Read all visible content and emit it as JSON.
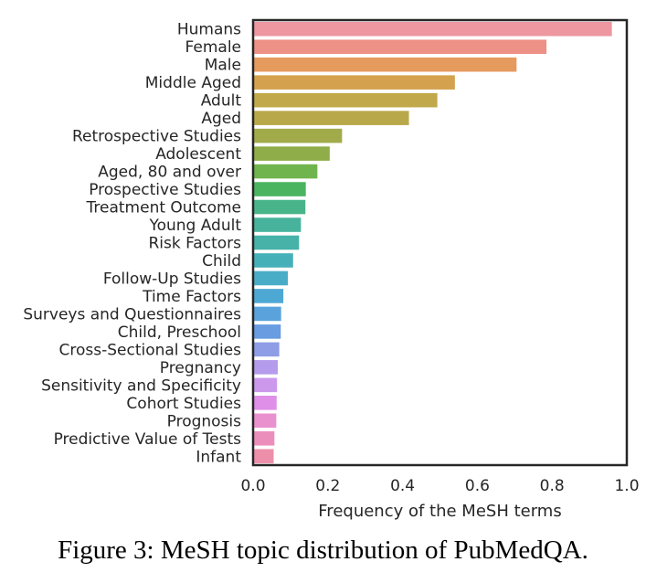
{
  "chart_data": {
    "type": "bar",
    "orientation": "horizontal",
    "categories": [
      "Humans",
      "Female",
      "Male",
      "Middle Aged",
      "Adult",
      "Aged",
      "Retrospective Studies",
      "Adolescent",
      "Aged, 80 and over",
      "Prospective Studies",
      "Treatment Outcome",
      "Young Adult",
      "Risk Factors",
      "Child",
      "Follow-Up Studies",
      "Time Factors",
      "Surveys and Questionnaires",
      "Child, Preschool",
      "Cross-Sectional Studies",
      "Pregnancy",
      "Sensitivity and Specificity",
      "Cohort Studies",
      "Prognosis",
      "Predictive Value of Tests",
      "Infant"
    ],
    "values": [
      0.96,
      0.785,
      0.705,
      0.54,
      0.493,
      0.417,
      0.238,
      0.205,
      0.172,
      0.141,
      0.14,
      0.128,
      0.123,
      0.107,
      0.093,
      0.081,
      0.075,
      0.074,
      0.07,
      0.066,
      0.064,
      0.063,
      0.062,
      0.057,
      0.055
    ],
    "colors": [
      "#ee97a0",
      "#ed9186",
      "#e59a5e",
      "#d4a24f",
      "#c1a84a",
      "#b8a84a",
      "#a2ab4a",
      "#8fae4a",
      "#6fb44c",
      "#4bb461",
      "#49b489",
      "#47b39c",
      "#46b2a8",
      "#46b0b8",
      "#4aadc7",
      "#4ea8d4",
      "#5aa2dc",
      "#699ce0",
      "#8f9ce6",
      "#b49beb",
      "#cb98ec",
      "#df8fe7",
      "#e991cf",
      "#ec8ebc",
      "#ee8faa"
    ],
    "xlabel": "Frequency of the MeSH terms",
    "ylabel": "",
    "xlim": [
      0,
      1.0
    ],
    "xticks": [
      "0.0",
      "0.2",
      "0.4",
      "0.6",
      "0.8",
      "1.0"
    ],
    "grid": false
  },
  "caption": "Figure 3: MeSH topic distribution of PubMedQA."
}
